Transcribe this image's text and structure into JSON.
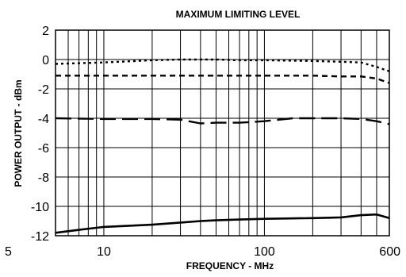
{
  "chart_data": {
    "type": "line",
    "title": "MAXIMUM LIMITING LEVEL",
    "xlabel": "FREQUENCY - MHz",
    "ylabel": "POWER OUTPUT - dBm",
    "x_scale": "log",
    "xlim": [
      5,
      600
    ],
    "ylim": [
      -12,
      2
    ],
    "grid": true,
    "x_tick_labels": [
      {
        "value": 5,
        "label": "5"
      },
      {
        "value": 10,
        "label": "10"
      },
      {
        "value": 100,
        "label": "100"
      },
      {
        "value": 600,
        "label": "600"
      }
    ],
    "x_gridlines": [
      5,
      6,
      7,
      8,
      9,
      10,
      20,
      30,
      40,
      50,
      60,
      70,
      80,
      90,
      100,
      200,
      300,
      400,
      500,
      600
    ],
    "y_ticks": [
      2,
      0,
      -2,
      -4,
      -6,
      -8,
      -10,
      -12
    ],
    "series": [
      {
        "style": "dotted",
        "x": [
          5,
          10,
          20,
          30,
          40,
          50,
          70,
          100,
          200,
          300,
          400,
          500,
          600
        ],
        "y": [
          -0.3,
          -0.2,
          -0.05,
          0.0,
          0.0,
          0.0,
          -0.05,
          -0.05,
          -0.1,
          -0.15,
          -0.2,
          -0.5,
          -0.8
        ]
      },
      {
        "style": "short-dash",
        "x": [
          5,
          10,
          20,
          30,
          40,
          50,
          70,
          100,
          200,
          300,
          400,
          500,
          600
        ],
        "y": [
          -1.1,
          -1.1,
          -1.1,
          -1.1,
          -1.1,
          -1.1,
          -1.1,
          -1.1,
          -1.1,
          -1.15,
          -1.15,
          -1.3,
          -1.6
        ]
      },
      {
        "style": "long-dash",
        "x": [
          5,
          10,
          20,
          30,
          40,
          50,
          70,
          100,
          150,
          200,
          300,
          400,
          500,
          600
        ],
        "y": [
          -4.0,
          -4.05,
          -4.05,
          -4.1,
          -4.35,
          -4.3,
          -4.3,
          -4.2,
          -4.0,
          -4.0,
          -4.0,
          -4.05,
          -4.2,
          -4.4
        ]
      },
      {
        "style": "solid",
        "x": [
          5,
          7,
          10,
          20,
          30,
          40,
          50,
          70,
          100,
          200,
          300,
          400,
          500,
          600
        ],
        "y": [
          -11.8,
          -11.6,
          -11.4,
          -11.25,
          -11.1,
          -11.0,
          -10.95,
          -10.9,
          -10.85,
          -10.8,
          -10.75,
          -10.6,
          -10.55,
          -10.8
        ]
      }
    ]
  }
}
